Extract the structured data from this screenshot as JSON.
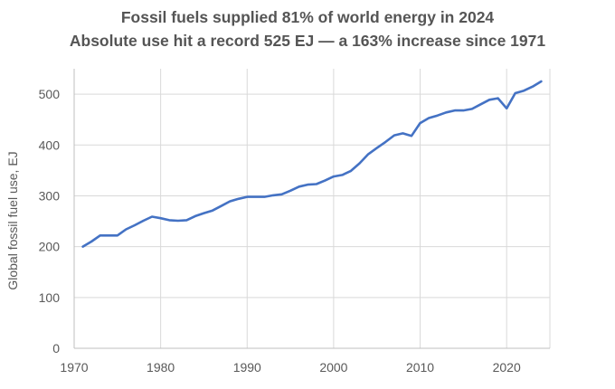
{
  "chart_data": {
    "type": "line",
    "title": "Fossil fuels supplied 81% of world energy in 2024",
    "subtitle": "Absolute use hit a record 525 EJ — a 163% increase since 1971",
    "xlabel": "",
    "ylabel": "Global fossil fuel use, EJ",
    "xlim": [
      1970,
      2025
    ],
    "ylim": [
      0,
      550
    ],
    "x_ticks": [
      "1970",
      "1980",
      "1990",
      "2000",
      "2010",
      "2020"
    ],
    "y_ticks": [
      "0",
      "100",
      "200",
      "300",
      "400",
      "500"
    ],
    "grid": true,
    "line_color": "#4472C4",
    "grid_color": "#D9D9D9",
    "series": [
      {
        "x": [
          1971,
          1972,
          1973,
          1974,
          1975,
          1976,
          1977,
          1978,
          1979,
          1980,
          1981,
          1982,
          1983,
          1984,
          1985,
          1986,
          1987,
          1988,
          1989,
          1990,
          1991,
          1992,
          1993,
          1994,
          1995,
          1996,
          1997,
          1998,
          1999,
          2000,
          2001,
          2002,
          2003,
          2004,
          2005,
          2006,
          2007,
          2008,
          2009,
          2010,
          2011,
          2012,
          2013,
          2014,
          2015,
          2016,
          2017,
          2018,
          2019,
          2020,
          2021,
          2022,
          2023,
          2024
        ],
        "values": [
          200,
          210,
          222,
          222,
          222,
          234,
          242,
          251,
          259,
          256,
          252,
          251,
          252,
          260,
          266,
          271,
          280,
          289,
          294,
          298,
          298,
          298,
          301,
          303,
          310,
          318,
          322,
          323,
          330,
          338,
          341,
          349,
          364,
          382,
          394,
          406,
          419,
          423,
          418,
          443,
          453,
          458,
          464,
          468,
          468,
          471,
          480,
          489,
          492,
          472,
          502,
          507,
          515,
          525
        ]
      }
    ]
  }
}
